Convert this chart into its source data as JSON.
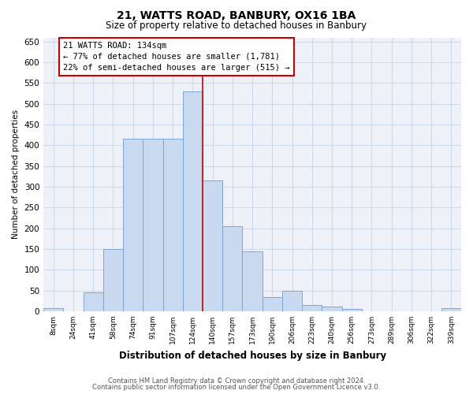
{
  "title": "21, WATTS ROAD, BANBURY, OX16 1BA",
  "subtitle": "Size of property relative to detached houses in Banbury",
  "xlabel": "Distribution of detached houses by size in Banbury",
  "ylabel": "Number of detached properties",
  "bar_labels": [
    "8sqm",
    "24sqm",
    "41sqm",
    "58sqm",
    "74sqm",
    "91sqm",
    "107sqm",
    "124sqm",
    "140sqm",
    "157sqm",
    "173sqm",
    "190sqm",
    "206sqm",
    "223sqm",
    "240sqm",
    "256sqm",
    "273sqm",
    "289sqm",
    "306sqm",
    "322sqm",
    "339sqm"
  ],
  "bar_values": [
    8,
    0,
    45,
    150,
    415,
    415,
    415,
    530,
    315,
    205,
    145,
    35,
    50,
    15,
    12,
    5,
    0,
    0,
    0,
    0,
    8
  ],
  "bar_color": "#c9d9f0",
  "bar_edge_color": "#7ba7d4",
  "vline_index": 8,
  "vline_color": "#cc0000",
  "ylim": [
    0,
    660
  ],
  "yticks": [
    0,
    50,
    100,
    150,
    200,
    250,
    300,
    350,
    400,
    450,
    500,
    550,
    600,
    650
  ],
  "annotation_title": "21 WATTS ROAD: 134sqm",
  "annotation_line1": "← 77% of detached houses are smaller (1,781)",
  "annotation_line2": "22% of semi-detached houses are larger (515) →",
  "annotation_box_color": "#ffffff",
  "annotation_box_edge": "#cc0000",
  "footer_line1": "Contains HM Land Registry data © Crown copyright and database right 2024.",
  "footer_line2": "Contains public sector information licensed under the Open Government Licence v3.0.",
  "background_color": "#ffffff",
  "grid_color": "#cdd8ea"
}
